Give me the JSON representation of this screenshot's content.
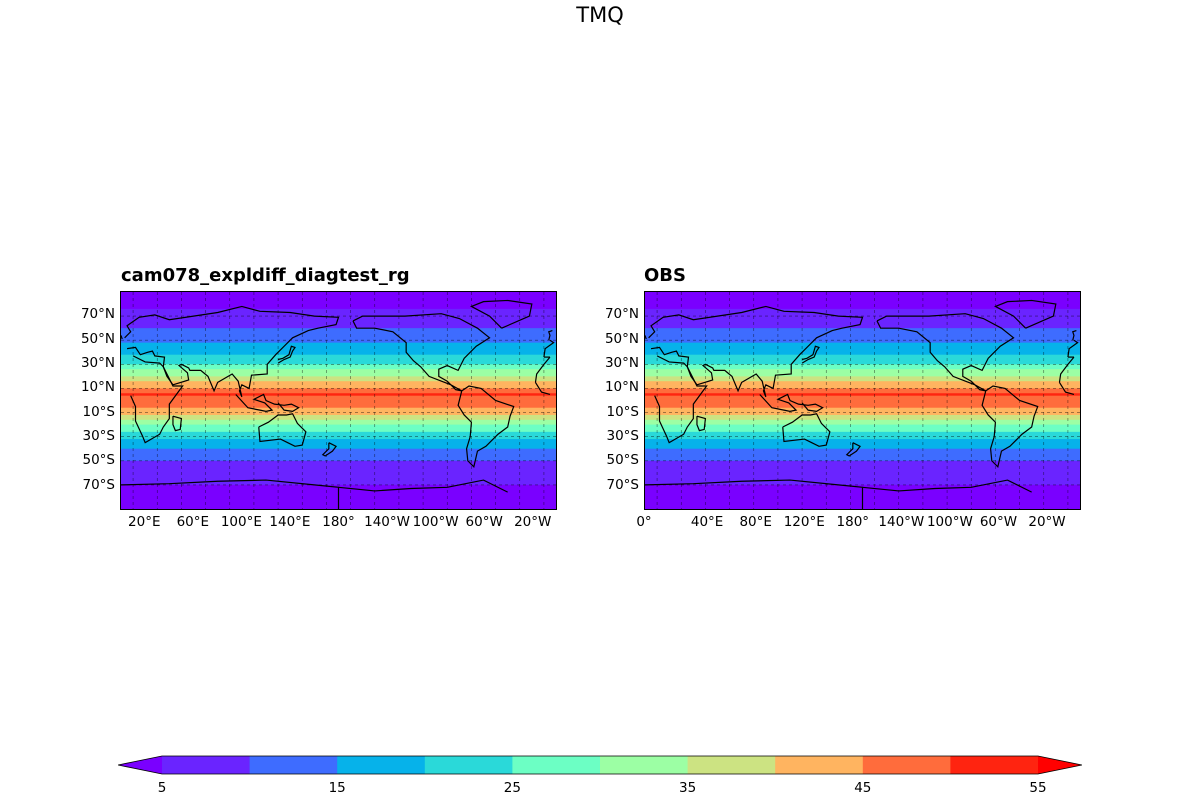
{
  "figure": {
    "title": "TMQ"
  },
  "panels": [
    {
      "title": "cam078_expldiff_diagtest_rg",
      "lat_ticks": [
        "70°N",
        "50°N",
        "30°N",
        "10°N",
        "10°S",
        "30°S",
        "50°S",
        "70°S"
      ],
      "lon_ticks": [
        "20°E",
        "60°E",
        "100°E",
        "140°E",
        "180°",
        "140°W",
        "100°W",
        "60°W",
        "20°W"
      ],
      "lon_start": 0
    },
    {
      "title": "OBS",
      "lat_ticks": [
        "70°N",
        "50°N",
        "30°N",
        "10°N",
        "10°S",
        "30°S",
        "50°S",
        "70°S"
      ],
      "lon_ticks": [
        "0°",
        "40°E",
        "80°E",
        "120°E",
        "180°",
        "140°W",
        "100°W",
        "60°W",
        "20°W"
      ],
      "lon_start": 0
    }
  ],
  "colorbar": {
    "levels": [
      5,
      10,
      15,
      20,
      25,
      30,
      35,
      40,
      45,
      50,
      55
    ],
    "labels": [
      "5",
      "15",
      "25",
      "35",
      "45",
      "55"
    ],
    "colors": [
      "#7a00ff",
      "#6a24ff",
      "#3e6cff",
      "#06b2ea",
      "#2ad9d9",
      "#6cffc4",
      "#9cffa4",
      "#cce382",
      "#ffb460",
      "#ff6c3c",
      "#ff2410",
      "#ff0000"
    ],
    "extend": "both",
    "colormap": "rainbow"
  },
  "chart_data": {
    "type": "heatmap",
    "variable": "TMQ",
    "latitude_bands": [
      {
        "lat": 80,
        "value": 4
      },
      {
        "lat": 70,
        "value": 7
      },
      {
        "lat": 60,
        "value": 10
      },
      {
        "lat": 50,
        "value": 14
      },
      {
        "lat": 40,
        "value": 19
      },
      {
        "lat": 30,
        "value": 25
      },
      {
        "lat": 20,
        "value": 35
      },
      {
        "lat": 10,
        "value": 46
      },
      {
        "lat": 5,
        "value": 51
      },
      {
        "lat": 0,
        "value": 48
      },
      {
        "lat": -10,
        "value": 42
      },
      {
        "lat": -20,
        "value": 30
      },
      {
        "lat": -30,
        "value": 21
      },
      {
        "lat": -40,
        "value": 15
      },
      {
        "lat": -50,
        "value": 10
      },
      {
        "lat": -60,
        "value": 7
      },
      {
        "lat": -70,
        "value": 5
      },
      {
        "lat": -80,
        "value": 3
      }
    ]
  }
}
